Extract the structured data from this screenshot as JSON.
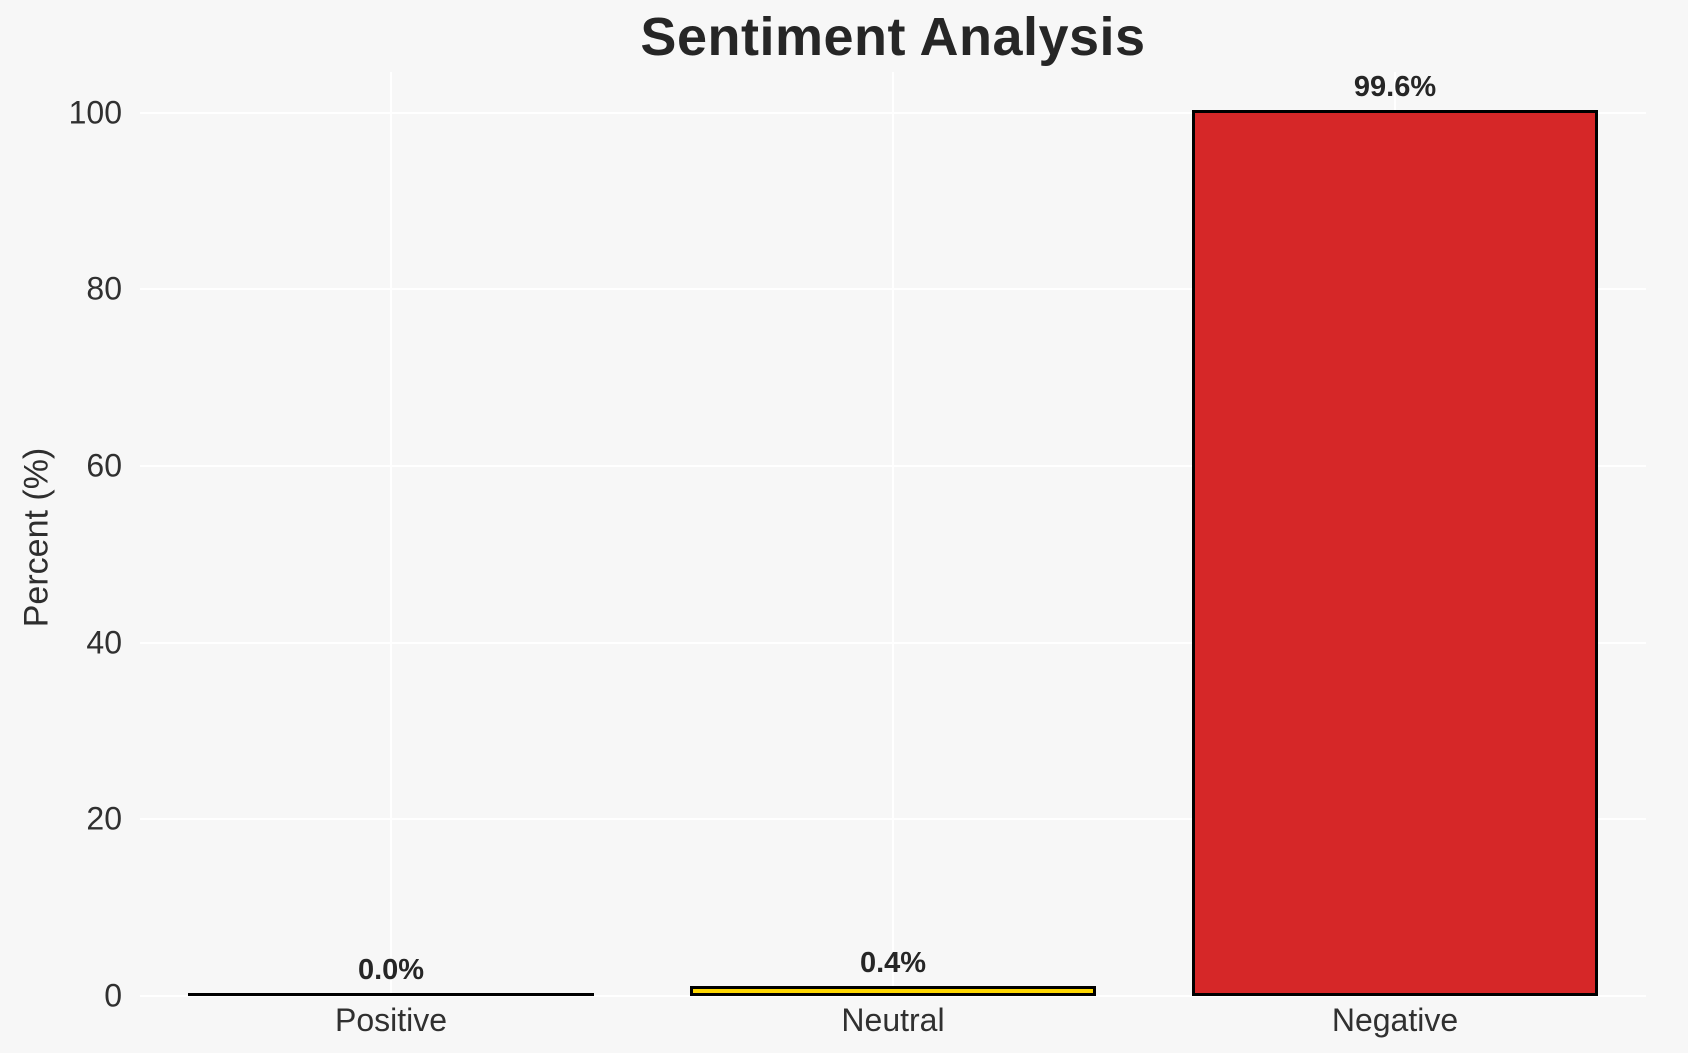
{
  "chart_data": {
    "type": "bar",
    "title": "Sentiment Analysis",
    "xlabel": "",
    "ylabel": "Percent (%)",
    "categories": [
      "Positive",
      "Neutral",
      "Negative"
    ],
    "values": [
      0.0,
      0.4,
      99.6
    ],
    "value_labels": [
      "0.0%",
      "0.4%",
      "99.6%"
    ],
    "bar_colors": [
      "transparent",
      "#ffd700",
      "#d62728"
    ],
    "bar_edge_color": "#000000",
    "yticks": [
      0,
      20,
      40,
      60,
      80,
      100
    ],
    "ytick_labels": [
      "0",
      "20",
      "40",
      "60",
      "80",
      "100"
    ],
    "ylim": [
      0,
      104.6
    ],
    "grid": true,
    "grid_color": "#ffffff",
    "background_color": "#f7f7f7",
    "text_color": "#303030",
    "legend": "none"
  }
}
